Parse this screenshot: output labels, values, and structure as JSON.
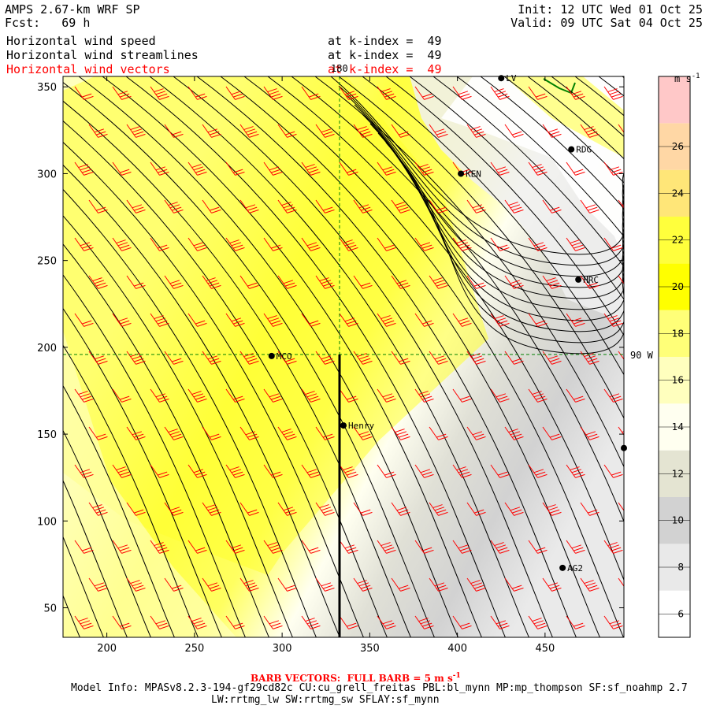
{
  "header": {
    "title": "AMPS 2.67-km WRF SP",
    "forecast": "Fcst:   69 h",
    "init": "Init: 12 UTC Wed 01 Oct 25",
    "valid": "Valid: 09 UTC Sat 04 Oct 25"
  },
  "fields": [
    {
      "name": "Horizontal wind speed",
      "level": "at k-index =  49",
      "color": "#000000"
    },
    {
      "name": "Horizontal wind streamlines",
      "level": "at k-index =  49",
      "color": "#000000"
    },
    {
      "name": "Horizontal wind vectors",
      "level": "at k-index =  49",
      "color": "#ff0000"
    }
  ],
  "axes": {
    "x_ticks": [
      "200",
      "250",
      "300",
      "350",
      "400",
      "450"
    ],
    "y_ticks": [
      "350",
      "300",
      "250",
      "200",
      "150",
      "100",
      "50"
    ],
    "x_range": [
      175,
      495
    ],
    "y_range": [
      33,
      356
    ]
  },
  "grid_labels": {
    "meridian": "180",
    "parallel": "90 W"
  },
  "stations": [
    {
      "name": "LV",
      "x": 425,
      "y": 355
    },
    {
      "name": "RDG",
      "x": 465,
      "y": 314
    },
    {
      "name": "KEN",
      "x": 402,
      "y": 300
    },
    {
      "name": "HRC",
      "x": 469,
      "y": 239
    },
    {
      "name": "MCO",
      "x": 294,
      "y": 195
    },
    {
      "name": "Henry",
      "x": 335,
      "y": 155
    },
    {
      "name": "AG2",
      "x": 460,
      "y": 73
    },
    {
      "name": "",
      "x": 495,
      "y": 142
    }
  ],
  "colorbar": {
    "unit": "m s",
    "unit_exp": "-1",
    "labels": [
      "26",
      "24",
      "22",
      "20",
      "18",
      "16",
      "14",
      "12",
      "10",
      "8",
      "6"
    ],
    "range": [
      5,
      29
    ],
    "bins": [
      {
        "lo": 5,
        "hi": 7,
        "color": "#ffffff"
      },
      {
        "lo": 7,
        "hi": 9,
        "color": "#e9e9e9"
      },
      {
        "lo": 9,
        "hi": 11,
        "color": "#d2d2d2"
      },
      {
        "lo": 11,
        "hi": 13,
        "color": "#e4e4d2"
      },
      {
        "lo": 13,
        "hi": 15,
        "color": "#fffff0"
      },
      {
        "lo": 15,
        "hi": 17,
        "color": "#ffffbe"
      },
      {
        "lo": 17,
        "hi": 19,
        "color": "#ffff78"
      },
      {
        "lo": 19,
        "hi": 21,
        "color": "#ffff00"
      },
      {
        "lo": 21,
        "hi": 23,
        "color": "#ffff3c"
      },
      {
        "lo": 23,
        "hi": 25,
        "color": "#ffe678"
      },
      {
        "lo": 25,
        "hi": 27,
        "color": "#ffd7a5"
      },
      {
        "lo": 27,
        "hi": 29,
        "color": "#ffc8c8"
      }
    ]
  },
  "footer": {
    "barb": "BARB VECTORS:  FULL BARB = 5 m s",
    "barb_exp": "-1",
    "model_info_1": "Model Info: MPASv8.2.3-194-gf29cd82c CU:cu_grell_freitas PBL:bl_mynn MP:mp_thompson SF:sf_noahmp 2.7",
    "model_info_2": "LW:rrtmg_lw SW:rrtmg_sw SFLAY:sf_mynn"
  },
  "colors": {
    "barb": "#ff0000",
    "streamline": "#000000",
    "gridline": "#008000",
    "coast": "#008000"
  }
}
